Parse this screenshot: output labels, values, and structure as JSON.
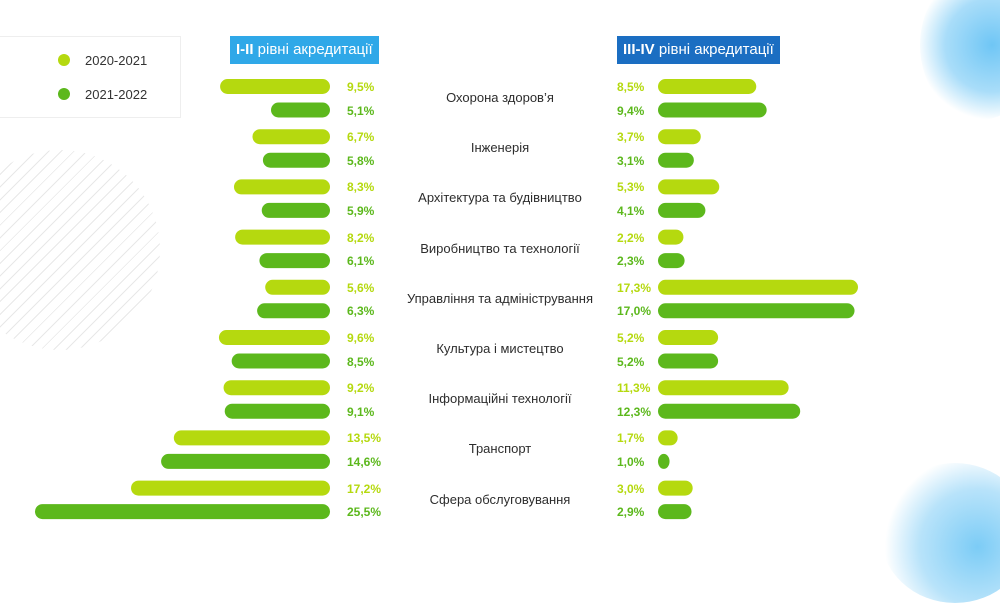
{
  "legend": {
    "items": [
      {
        "label": "2020-2021",
        "color": "#b5d90f"
      },
      {
        "label": "2021-2022",
        "color": "#5cb81c"
      }
    ]
  },
  "headers": {
    "left": {
      "bold": "I-II",
      "text": " рівні акредитації",
      "color": "#2fa8e8"
    },
    "right": {
      "bold": "III-IV",
      "text": " рівні акредитації",
      "color": "#1b6ec2"
    }
  },
  "chart_data": {
    "type": "bar",
    "orientation": "horizontal-butterfly",
    "categories": [
      "Охорона здоров’я",
      "Інженерія",
      "Архітектура та будівництво",
      "Виробництво та технології",
      "Управління та адміністрування",
      "Культура і мистецтво",
      "Інформаційні технології",
      "Транспорт",
      "Сфера обслуговування"
    ],
    "panels": [
      {
        "name": "I-II рівні акредитації",
        "series": [
          {
            "name": "2020-2021",
            "color": "#b5d90f",
            "values": [
              9.5,
              6.7,
              8.3,
              8.2,
              5.6,
              9.6,
              9.2,
              13.5,
              17.2
            ],
            "labels": [
              "9,5%",
              "6,7%",
              "8,3%",
              "8,2%",
              "5,6%",
              "9,6%",
              "9,2%",
              "13,5%",
              "17,2%"
            ]
          },
          {
            "name": "2021-2022",
            "color": "#5cb81c",
            "values": [
              5.1,
              5.8,
              5.9,
              6.1,
              6.3,
              8.5,
              9.1,
              14.6,
              25.5
            ],
            "labels": [
              "5,1%",
              "5,8%",
              "5,9%",
              "6,1%",
              "6,3%",
              "8,5%",
              "9,1%",
              "14,6%",
              "25,5%"
            ]
          }
        ]
      },
      {
        "name": "III-IV рівні акредитації",
        "series": [
          {
            "name": "2020-2021",
            "color": "#b5d90f",
            "values": [
              8.5,
              3.7,
              5.3,
              2.2,
              17.3,
              5.2,
              11.3,
              1.7,
              3.0
            ],
            "labels": [
              "8,5%",
              "3,7%",
              "5,3%",
              "2,2%",
              "17,3%",
              "5,2%",
              "11,3%",
              "1,7%",
              "3,0%"
            ]
          },
          {
            "name": "2021-2022",
            "color": "#5cb81c",
            "values": [
              9.4,
              3.1,
              4.1,
              2.3,
              17.0,
              5.2,
              12.3,
              1.0,
              2.9
            ],
            "labels": [
              "9,4%",
              "3,1%",
              "4,1%",
              "2,3%",
              "17,0%",
              "5,2%",
              "12,3%",
              "1,0%",
              "2,9%"
            ]
          }
        ]
      }
    ],
    "value_unit": "%",
    "grid": false,
    "legend_position": "top-left"
  }
}
